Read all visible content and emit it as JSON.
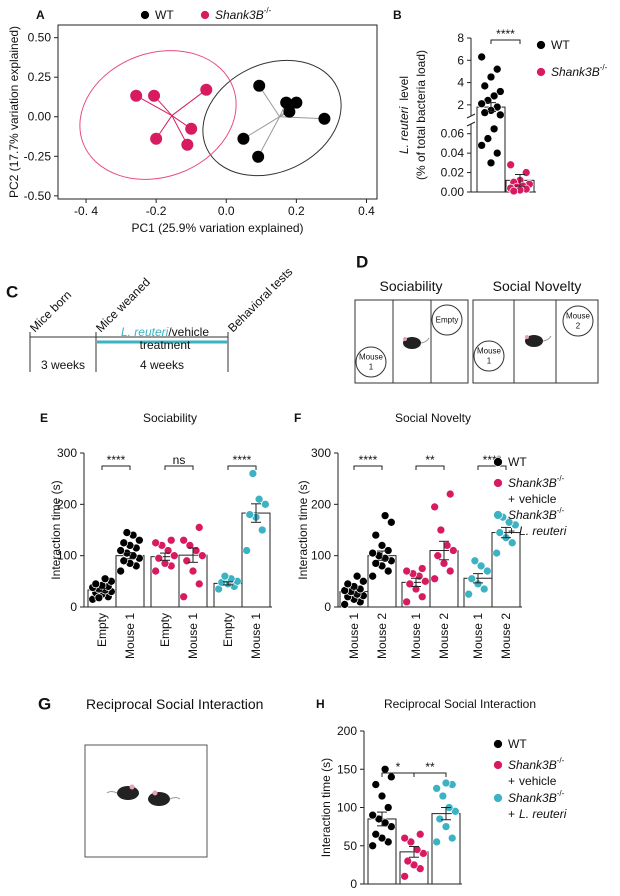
{
  "chart_data": [
    {
      "type": "scatter",
      "panel": "A",
      "xlabel": "PC1 (25.9% variation explained)",
      "ylabel": "PC2 (17.7% variation explained)",
      "xlim": [
        -0.48,
        0.43
      ],
      "ylim": [
        -0.52,
        0.58
      ],
      "xticks": [
        {
          "value": -0.4,
          "label": "-0. 4"
        },
        -0.2,
        {
          "value": 0,
          "label": "0.0"
        },
        0.2,
        0.4
      ],
      "yticks": [
        {
          "value": -0.5,
          "label": "-0.50"
        },
        -0.25,
        {
          "value": 0,
          "label": "0.00"
        },
        0.25,
        {
          "value": 0.5,
          "label": "0.50"
        }
      ],
      "series": [
        {
          "name": "WT",
          "color": "#000000",
          "x": [
            0.094,
            0.171,
            0.2,
            0.18,
            0.28,
            0.049,
            0.091
          ],
          "y": [
            0.196,
            0.089,
            0.089,
            0.032,
            -0.013,
            -0.139,
            -0.253
          ]
        },
        {
          "name": "Shank3B",
          "name_sup": "-/-",
          "color": "#d81b60",
          "x": [
            -0.257,
            -0.206,
            -0.057,
            -0.1,
            -0.2,
            -0.111
          ],
          "y": [
            0.133,
            0.133,
            0.171,
            -0.076,
            -0.139,
            -0.177
          ]
        }
      ]
    },
    {
      "type": "dot-bar",
      "panel": "B",
      "ylabel_italic": "L. reuteri",
      "ylabel": "level",
      "ylabel_line2": "(% of total bacteria load)",
      "ylim": [
        0,
        0.07
      ],
      "yticks": [
        {
          "value": 0,
          "label": "0.00"
        },
        0.02,
        0.04,
        0.06
      ],
      "ylim_upper": [
        1,
        8
      ],
      "yticks_upper": [
        2,
        4,
        6,
        8
      ],
      "series": [
        {
          "name": "WT",
          "color": "#000000",
          "values": [
            [
              6.3,
              5.2,
              4.5,
              3.7,
              3.2,
              2.8,
              2.4,
              2.1,
              1.8,
              1.5,
              1.3,
              1.1,
              0.065,
              0.055,
              0.048,
              0.04,
              0.03
            ]
          ],
          "means": [
            1.8
          ],
          "sems": [
            0.4
          ]
        },
        {
          "name": "Shank3B",
          "name_sup": "-/-",
          "color": "#d81b60",
          "values": [
            [
              0.028,
              0.02,
              0.012,
              0.01,
              0.008,
              0.006,
              0.005,
              0.004,
              0.003,
              0.002,
              0.001
            ]
          ],
          "means": [
            0.012
          ],
          "sems": [
            0.006
          ]
        }
      ],
      "significance": [
        "****"
      ]
    },
    {
      "type": "dot-bar",
      "panel": "E",
      "title": "Sociability",
      "ylabel": "Interaction time (s)",
      "ylim": [
        0,
        300
      ],
      "yticks": [
        0,
        100,
        200,
        300
      ],
      "categories": [
        "Empty",
        "Mouse 1",
        "Empty",
        "Mouse 1",
        "Empty",
        "Mouse 1"
      ],
      "series": [
        {
          "color": "#000000",
          "values": [
            [
              15,
              20,
              25,
              28,
              30,
              33,
              35,
              38,
              40,
              42,
              45,
              50,
              55,
              18
            ],
            [
              70,
              80,
              85,
              90,
              95,
              100,
              105,
              110,
              115,
              120,
              125,
              130,
              140,
              145
            ]
          ],
          "means": [
            33,
            100
          ],
          "sems": [
            3,
            6
          ]
        },
        {
          "color": "#d81b60",
          "values": [
            [
              70,
              80,
              85,
              95,
              100,
              110,
              120,
              125,
              130
            ],
            [
              20,
              45,
              70,
              90,
              100,
              110,
              120,
              130,
              155
            ]
          ],
          "means": [
            98,
            101
          ],
          "sems": [
            7,
            14
          ]
        },
        {
          "color": "#3bb3c3",
          "values": [
            [
              35,
              40,
              45,
              48,
              50,
              55,
              60
            ],
            [
              110,
              150,
              175,
              180,
              200,
              210,
              260
            ]
          ],
          "means": [
            46,
            183
          ],
          "sems": [
            3,
            18
          ]
        }
      ],
      "significance": [
        "****",
        "ns",
        "****"
      ]
    },
    {
      "type": "dot-bar",
      "panel": "F",
      "title": "Social Novelty",
      "ylabel": "Interaction time (s)",
      "ylim": [
        0,
        300
      ],
      "yticks": [
        0,
        100,
        200,
        300
      ],
      "categories": [
        "Mouse 1",
        "Mouse 2",
        "Mouse 1",
        "Mouse 2",
        "Mouse 1",
        "Mouse 2"
      ],
      "series": [
        {
          "name": "WT",
          "color": "#000000",
          "values": [
            [
              5,
              10,
              15,
              20,
              22,
              25,
              30,
              32,
              35,
              40,
              45,
              50,
              60
            ],
            [
              60,
              70,
              80,
              85,
              90,
              95,
              100,
              105,
              110,
              120,
              140,
              165,
              178
            ]
          ],
          "means": [
            30,
            100
          ],
          "sems": [
            5,
            9
          ]
        },
        {
          "name": "Shank3B",
          "name_sup": "-/-",
          "treatment_sign": "+",
          "treatment": "vehicle",
          "color": "#d81b60",
          "values": [
            [
              10,
              20,
              35,
              45,
              50,
              60,
              65,
              70,
              75
            ],
            [
              55,
              70,
              85,
              100,
              110,
              120,
              150,
              195,
              220
            ]
          ],
          "means": [
            48,
            110
          ],
          "sems": [
            8,
            18
          ]
        },
        {
          "name": "Shank3B",
          "name_sup": "-/-",
          "treatment_sign": "+",
          "treatment": "L. reuteri",
          "treatment_italic": true,
          "color": "#3bb3c3",
          "values": [
            [
              25,
              35,
              45,
              55,
              70,
              80,
              90
            ],
            [
              105,
              125,
              135,
              145,
              160,
              165,
              175
            ]
          ],
          "means": [
            56,
            145
          ],
          "sems": [
            9,
            10
          ]
        }
      ],
      "significance": [
        "****",
        "**",
        "****"
      ]
    },
    {
      "type": "dot-bar",
      "panel": "H",
      "title": "Reciprocal Social Interaction",
      "ylabel": "Interaction time (s)",
      "ylim": [
        0,
        200
      ],
      "yticks": [
        0,
        50,
        100,
        150,
        200
      ],
      "series": [
        {
          "name": "WT",
          "color": "#000000",
          "values": [
            [
              50,
              55,
              60,
              65,
              75,
              80,
              85,
              90,
              100,
              115,
              130,
              140,
              150
            ]
          ],
          "means": [
            85
          ],
          "sems": [
            9
          ]
        },
        {
          "name": "Shank3B",
          "name_sup": "-/-",
          "treatment_sign": "+",
          "treatment": "vehicle",
          "color": "#d81b60",
          "values": [
            [
              10,
              20,
              25,
              30,
              40,
              45,
              55,
              60,
              65
            ]
          ],
          "means": [
            42
          ],
          "sems": [
            7
          ]
        },
        {
          "name": "Shank3B",
          "name_sup": "-/-",
          "treatment_sign": "+",
          "treatment": "L. reuteri",
          "treatment_italic": true,
          "color": "#3bb3c3",
          "values": [
            [
              55,
              60,
              75,
              85,
              95,
              100,
              115,
              125,
              130,
              132
            ]
          ],
          "means": [
            92
          ],
          "sems": [
            8
          ]
        }
      ],
      "significance": [
        "*",
        "**"
      ]
    }
  ],
  "timeline": {
    "panel": "C",
    "events": [
      "Mice born",
      "Mice weaned",
      "Behavioral tests"
    ],
    "treatment_italic": "L. reuteri",
    "treatment": "/vehicle",
    "treatment_line2": "treatment",
    "periods": [
      "3 weeks",
      "4 weeks"
    ]
  },
  "chambers": {
    "panel": "D",
    "tests": [
      {
        "title": "Sociability",
        "left": [
          "Mouse",
          "1"
        ],
        "right": [
          "Empty"
        ]
      },
      {
        "title": "Social Novelty",
        "left": [
          "Mouse",
          "1"
        ],
        "right": [
          "Mouse",
          "2"
        ]
      }
    ]
  },
  "arena": {
    "panel": "G",
    "title": "Reciprocal Social Interaction"
  }
}
